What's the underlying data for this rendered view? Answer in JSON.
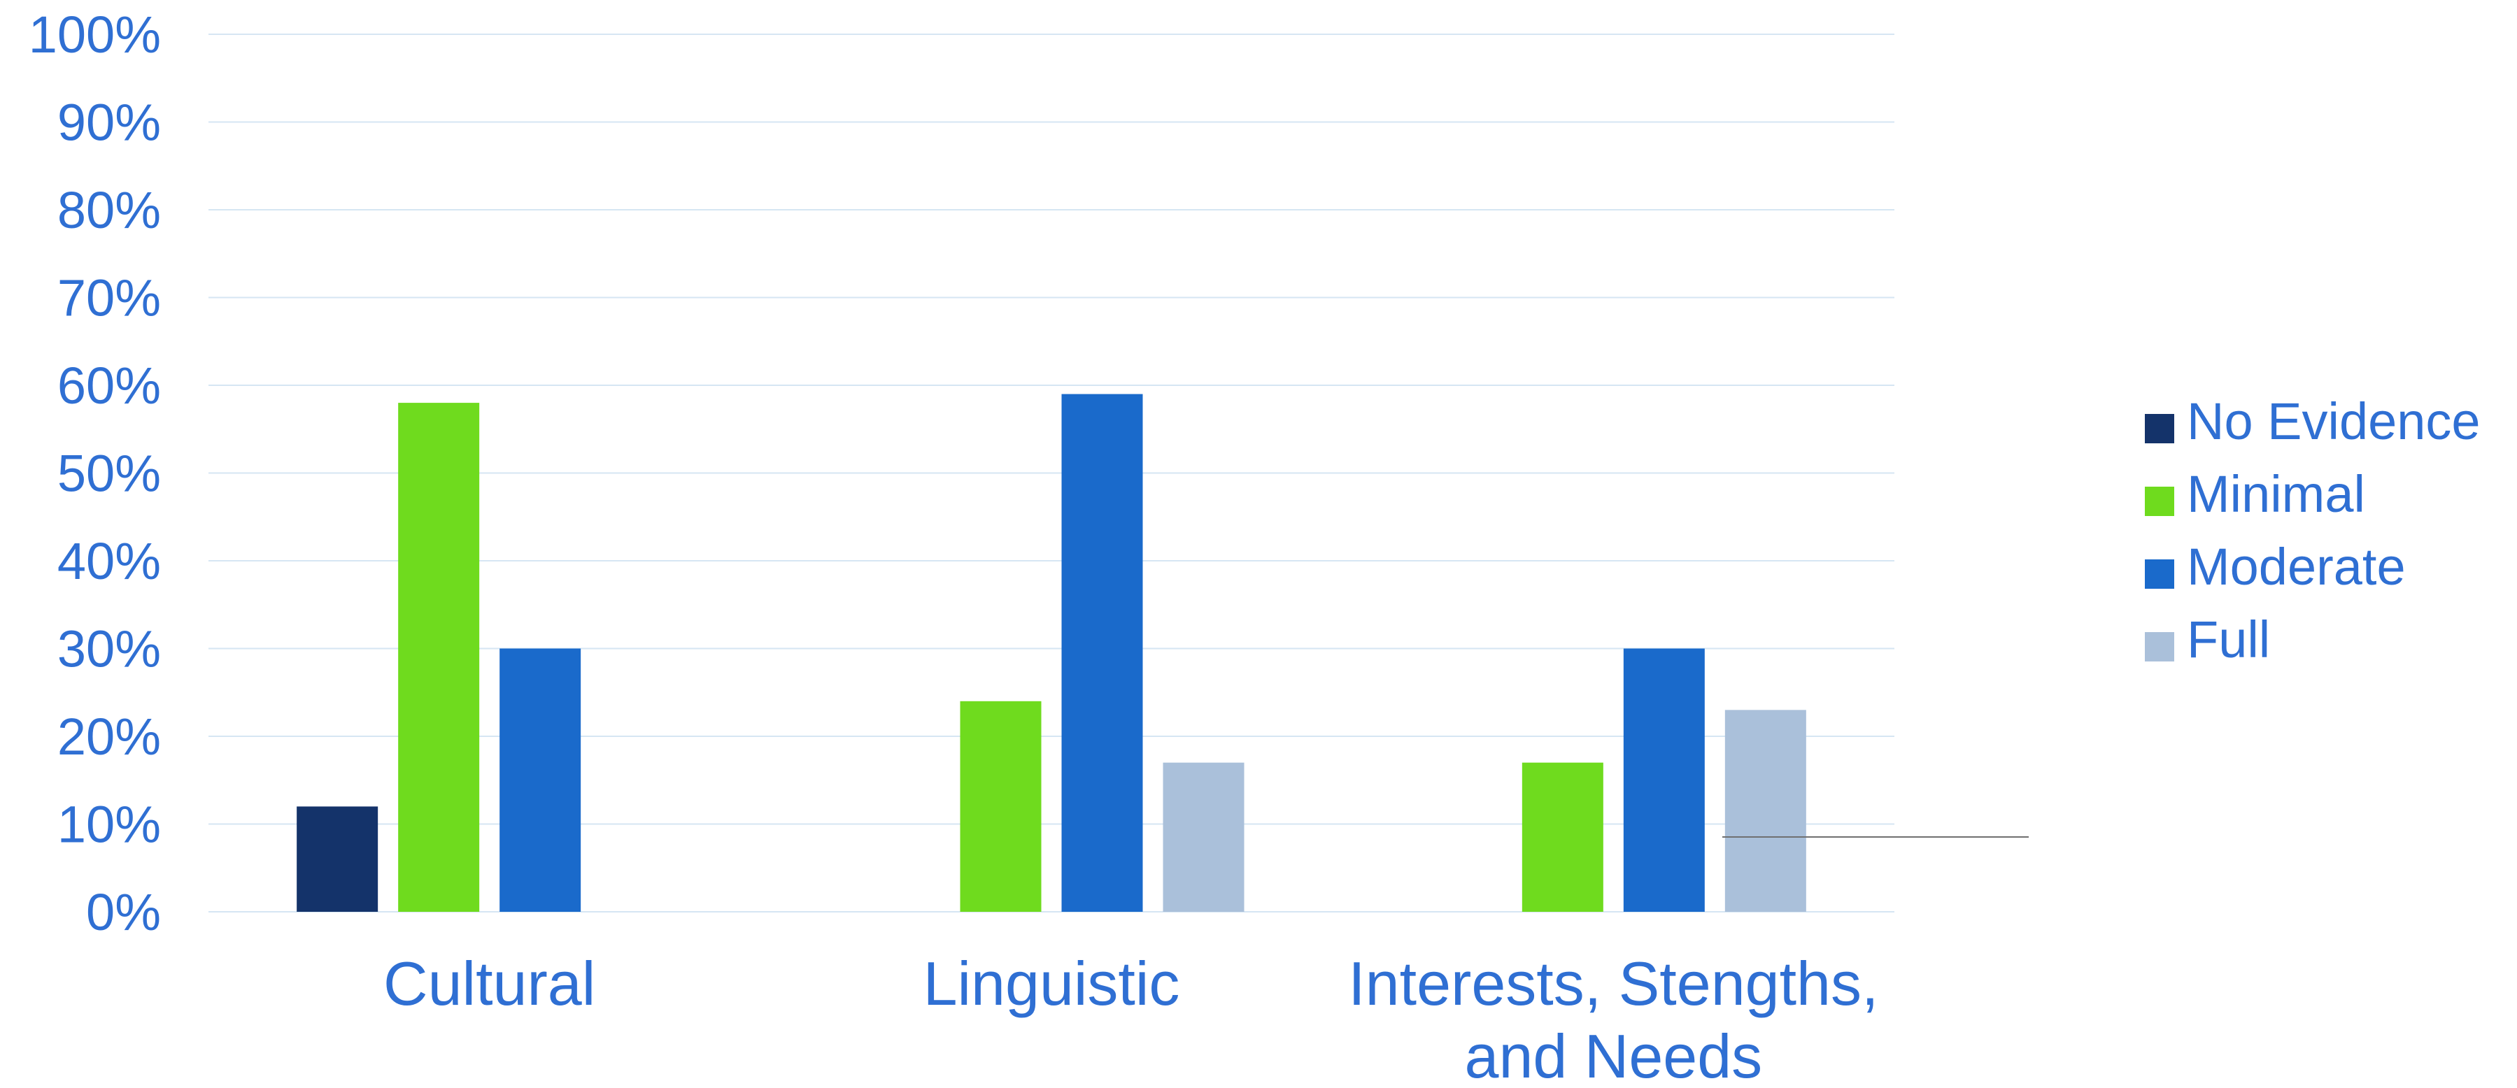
{
  "chart_data": {
    "type": "bar",
    "title": "",
    "xlabel": "",
    "ylabel": "",
    "categories": [
      [
        "Cultural"
      ],
      [
        "Linguistic"
      ],
      [
        "Interests, Stengths,",
        "and Needs"
      ]
    ],
    "series": [
      {
        "name": "No Evidence",
        "color": "#14336a",
        "values": [
          12,
          0,
          0
        ]
      },
      {
        "name": "Minimal",
        "color": "#6fdb1e",
        "values": [
          58,
          24,
          17
        ]
      },
      {
        "name": "Moderate",
        "color": "#1a6acb",
        "values": [
          30,
          59,
          30
        ]
      },
      {
        "name": "Full",
        "color": "#aac0da",
        "values": [
          0,
          17,
          23
        ]
      }
    ],
    "ylim": [
      0,
      100
    ],
    "yticks": [
      0,
      10,
      20,
      30,
      40,
      50,
      60,
      70,
      80,
      90,
      100
    ],
    "ytick_suffix": "%",
    "grid": true,
    "legend_position": "right",
    "colors": {
      "text": "#2f6fd3",
      "grid": "#d6e6f3",
      "annotation_line": "#707070"
    }
  }
}
